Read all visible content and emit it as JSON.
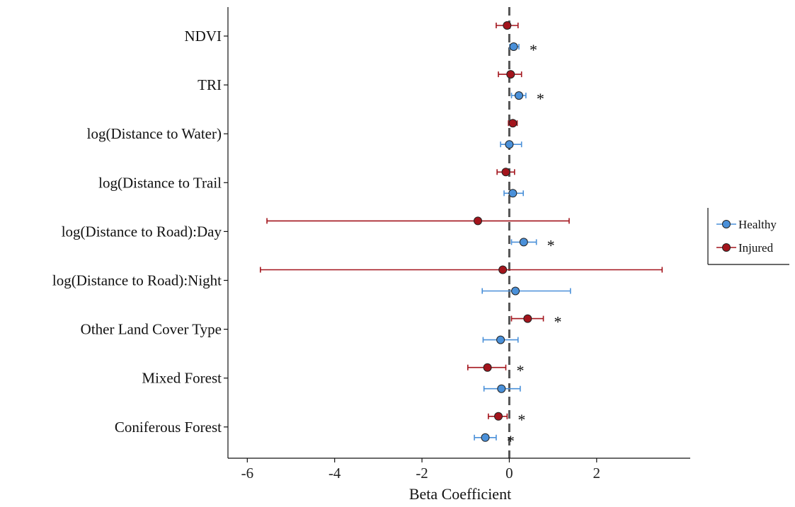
{
  "chart_data": {
    "type": "coefficient-plot",
    "xlabel": "Beta Coefficient",
    "xlim": [
      -6.2,
      3.9
    ],
    "xticks": [
      -6,
      -4,
      -2,
      0,
      2
    ],
    "reference_line": 0,
    "legend": {
      "placement": "right"
    },
    "colors": {
      "Healthy": "#4a90d9",
      "Injured": "#a3141c"
    },
    "categories": [
      "NDVI",
      "TRI",
      "log(Distance to Water)",
      "log(Distance to Trail",
      "log(Distance to Road):Day",
      "log(Distance to Road):Night",
      "Other Land Cover Type",
      "Mixed Forest",
      "Coniferous Forest"
    ],
    "series": [
      {
        "name": "Injured",
        "points": [
          {
            "estimate": -0.05,
            "lower": -0.3,
            "upper": 0.2,
            "star": false
          },
          {
            "estimate": 0.03,
            "lower": -0.25,
            "upper": 0.28,
            "star": false
          },
          {
            "estimate": 0.08,
            "lower": -0.02,
            "upper": 0.18,
            "star": false
          },
          {
            "estimate": -0.08,
            "lower": -0.28,
            "upper": 0.12,
            "star": false
          },
          {
            "estimate": -0.72,
            "lower": -5.55,
            "upper": 1.37,
            "star": false
          },
          {
            "estimate": -0.15,
            "lower": -5.7,
            "upper": 3.5,
            "star": false
          },
          {
            "estimate": 0.42,
            "lower": 0.05,
            "upper": 0.78,
            "star": true
          },
          {
            "estimate": -0.5,
            "lower": -0.95,
            "upper": -0.08,
            "star": true
          },
          {
            "estimate": -0.25,
            "lower": -0.48,
            "upper": -0.05,
            "star": true
          }
        ]
      },
      {
        "name": "Healthy",
        "points": [
          {
            "estimate": 0.1,
            "lower": 0.01,
            "upper": 0.22,
            "star": true
          },
          {
            "estimate": 0.22,
            "lower": 0.05,
            "upper": 0.38,
            "star": true
          },
          {
            "estimate": 0.0,
            "lower": -0.2,
            "upper": 0.28,
            "star": false
          },
          {
            "estimate": 0.08,
            "lower": -0.12,
            "upper": 0.32,
            "star": false
          },
          {
            "estimate": 0.33,
            "lower": 0.05,
            "upper": 0.62,
            "star": true
          },
          {
            "estimate": 0.14,
            "lower": -0.62,
            "upper": 1.4,
            "star": false
          },
          {
            "estimate": -0.2,
            "lower": -0.6,
            "upper": 0.2,
            "star": false
          },
          {
            "estimate": -0.18,
            "lower": -0.58,
            "upper": 0.25,
            "star": false
          },
          {
            "estimate": -0.55,
            "lower": -0.8,
            "upper": -0.3,
            "star": true
          }
        ]
      }
    ],
    "star_symbol": "*"
  }
}
